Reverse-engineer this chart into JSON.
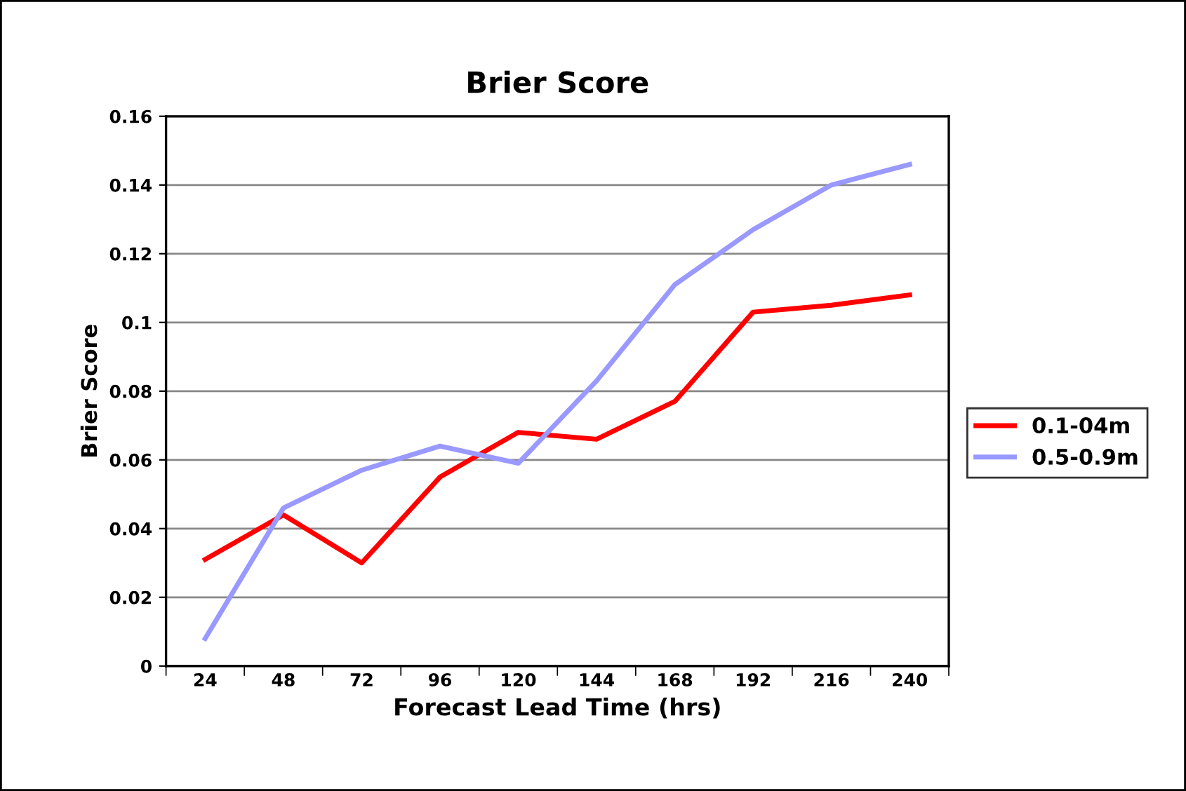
{
  "chart_data": {
    "type": "line",
    "title": "Brier Score",
    "xlabel": "Forecast Lead Time (hrs)",
    "ylabel": "Brier Score",
    "categories": [
      "24",
      "48",
      "72",
      "96",
      "120",
      "144",
      "168",
      "192",
      "216",
      "240"
    ],
    "series": [
      {
        "name": "0.1-04m",
        "color": "#ff0000",
        "values": [
          0.031,
          0.044,
          0.03,
          0.055,
          0.068,
          0.066,
          0.077,
          0.103,
          0.105,
          0.108
        ]
      },
      {
        "name": "0.5-0.9m",
        "color": "#9999ff",
        "values": [
          0.008,
          0.046,
          0.057,
          0.064,
          0.059,
          0.083,
          0.111,
          0.127,
          0.14,
          0.146
        ]
      }
    ],
    "ylim": [
      0,
      0.16
    ],
    "yticks": [
      0,
      0.02,
      0.04,
      0.06,
      0.08,
      0.1,
      0.12,
      0.14,
      0.16
    ],
    "grid": "y",
    "legend": "right",
    "marker": "none",
    "line_style": "solid"
  }
}
